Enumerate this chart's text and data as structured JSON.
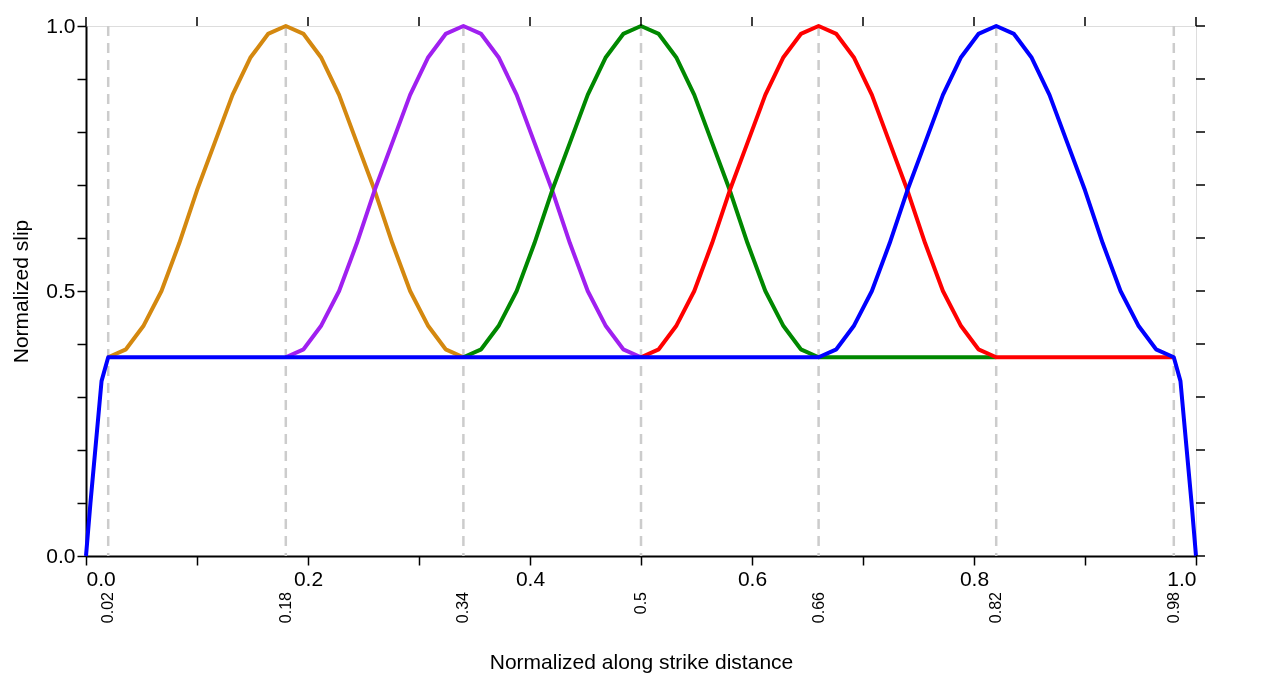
{
  "chart_data": {
    "type": "line",
    "xlabel": "Normalized along strike distance",
    "ylabel": "Normalized slip",
    "xlim": [
      0,
      1
    ],
    "ylim": [
      0,
      1
    ],
    "xticks": [
      {
        "value": 0,
        "label": "0.0"
      },
      {
        "value": 0.1,
        "label": null
      },
      {
        "value": 0.2,
        "label": "0.2"
      },
      {
        "value": 0.3,
        "label": null
      },
      {
        "value": 0.4,
        "label": "0.4"
      },
      {
        "value": 0.5,
        "label": null
      },
      {
        "value": 0.6,
        "label": "0.6"
      },
      {
        "value": 0.7,
        "label": null
      },
      {
        "value": 0.8,
        "label": "0.8"
      },
      {
        "value": 0.9,
        "label": null
      },
      {
        "value": 1,
        "label": "1.0"
      }
    ],
    "yticks": [
      {
        "value": 0,
        "label": "0.0"
      },
      {
        "value": 0.1,
        "label": null
      },
      {
        "value": 0.2,
        "label": null
      },
      {
        "value": 0.3,
        "label": null
      },
      {
        "value": 0.4,
        "label": null
      },
      {
        "value": 0.5,
        "label": "0.5"
      },
      {
        "value": 0.6,
        "label": null
      },
      {
        "value": 0.7,
        "label": null
      },
      {
        "value": 0.8,
        "label": null
      },
      {
        "value": 0.9,
        "label": null
      },
      {
        "value": 1,
        "label": "1.0"
      }
    ],
    "grid": false,
    "marker": "none",
    "line_style": "solid",
    "ref_lines": [
      {
        "axis": "x",
        "value": 0.02,
        "label": "0.02",
        "color": "#cccccc",
        "line_style": "dashed"
      },
      {
        "axis": "x",
        "value": 0.18,
        "label": "0.18",
        "color": "#cccccc",
        "line_style": "dashed"
      },
      {
        "axis": "x",
        "value": 0.34,
        "label": "0.34",
        "color": "#cccccc",
        "line_style": "dashed"
      },
      {
        "axis": "x",
        "value": 0.5,
        "label": "0.5",
        "color": "#cccccc",
        "line_style": "dashed"
      },
      {
        "axis": "x",
        "value": 0.66,
        "label": "0.66",
        "color": "#cccccc",
        "line_style": "dashed"
      },
      {
        "axis": "x",
        "value": 0.82,
        "label": "0.82",
        "color": "#cccccc",
        "line_style": "dashed"
      },
      {
        "axis": "x",
        "value": 0.98,
        "label": "0.98",
        "color": "#cccccc",
        "line_style": "dashed"
      }
    ],
    "series": [
      {
        "color": "#d4880f",
        "x": [
          0.02,
          0.036,
          0.052,
          0.068,
          0.084,
          0.1,
          0.116,
          0.132,
          0.148,
          0.164,
          0.18,
          0.196,
          0.212,
          0.228,
          0.244,
          0.26,
          0.276,
          0.292,
          0.308,
          0.324,
          0.34
        ],
        "values": [
          0.375,
          0.39,
          0.435,
          0.5,
          0.59,
          0.69,
          0.78,
          0.87,
          0.94,
          0.985,
          1,
          0.985,
          0.94,
          0.87,
          0.78,
          0.69,
          0.59,
          0.5,
          0.435,
          0.39,
          0.375
        ]
      },
      {
        "color": "#a020f0",
        "x": [
          0.18,
          0.196,
          0.212,
          0.228,
          0.244,
          0.26,
          0.276,
          0.292,
          0.308,
          0.324,
          0.34,
          0.356,
          0.372,
          0.388,
          0.404,
          0.42,
          0.436,
          0.452,
          0.468,
          0.484,
          0.5
        ],
        "values": [
          0.375,
          0.39,
          0.435,
          0.5,
          0.59,
          0.69,
          0.78,
          0.87,
          0.94,
          0.985,
          1,
          0.985,
          0.94,
          0.87,
          0.78,
          0.69,
          0.59,
          0.5,
          0.435,
          0.39,
          0.375
        ]
      },
      {
        "color": "#008800",
        "x": [
          0.34,
          0.356,
          0.372,
          0.388,
          0.404,
          0.42,
          0.436,
          0.452,
          0.468,
          0.484,
          0.5,
          0.516,
          0.532,
          0.548,
          0.564,
          0.58,
          0.596,
          0.612,
          0.628,
          0.644,
          0.66,
          0.82
        ],
        "values": [
          0.375,
          0.39,
          0.435,
          0.5,
          0.59,
          0.69,
          0.78,
          0.87,
          0.94,
          0.985,
          1,
          0.985,
          0.94,
          0.87,
          0.78,
          0.69,
          0.59,
          0.5,
          0.435,
          0.39,
          0.375,
          0.375
        ]
      },
      {
        "color": "#ff0000",
        "x": [
          0.5,
          0.516,
          0.532,
          0.548,
          0.564,
          0.58,
          0.596,
          0.612,
          0.628,
          0.644,
          0.66,
          0.676,
          0.692,
          0.708,
          0.724,
          0.74,
          0.756,
          0.772,
          0.788,
          0.804,
          0.82,
          0.98
        ],
        "values": [
          0.375,
          0.39,
          0.435,
          0.5,
          0.59,
          0.69,
          0.78,
          0.87,
          0.94,
          0.985,
          1,
          0.985,
          0.94,
          0.87,
          0.78,
          0.69,
          0.59,
          0.5,
          0.435,
          0.39,
          0.375,
          0.375
        ]
      },
      {
        "color": "#0000ff",
        "x": [
          0,
          0.004,
          0.014,
          0.02,
          0.66,
          0.676,
          0.692,
          0.708,
          0.724,
          0.74,
          0.756,
          0.772,
          0.788,
          0.804,
          0.82,
          0.836,
          0.852,
          0.868,
          0.884,
          0.9,
          0.916,
          0.932,
          0.948,
          0.964,
          0.98,
          0.986,
          0.996,
          1
        ],
        "values": [
          0,
          0.1,
          0.33,
          0.375,
          0.375,
          0.39,
          0.435,
          0.5,
          0.59,
          0.69,
          0.78,
          0.87,
          0.94,
          0.985,
          1,
          0.985,
          0.94,
          0.87,
          0.78,
          0.69,
          0.59,
          0.5,
          0.435,
          0.39,
          0.375,
          0.33,
          0.1,
          0
        ]
      }
    ]
  }
}
